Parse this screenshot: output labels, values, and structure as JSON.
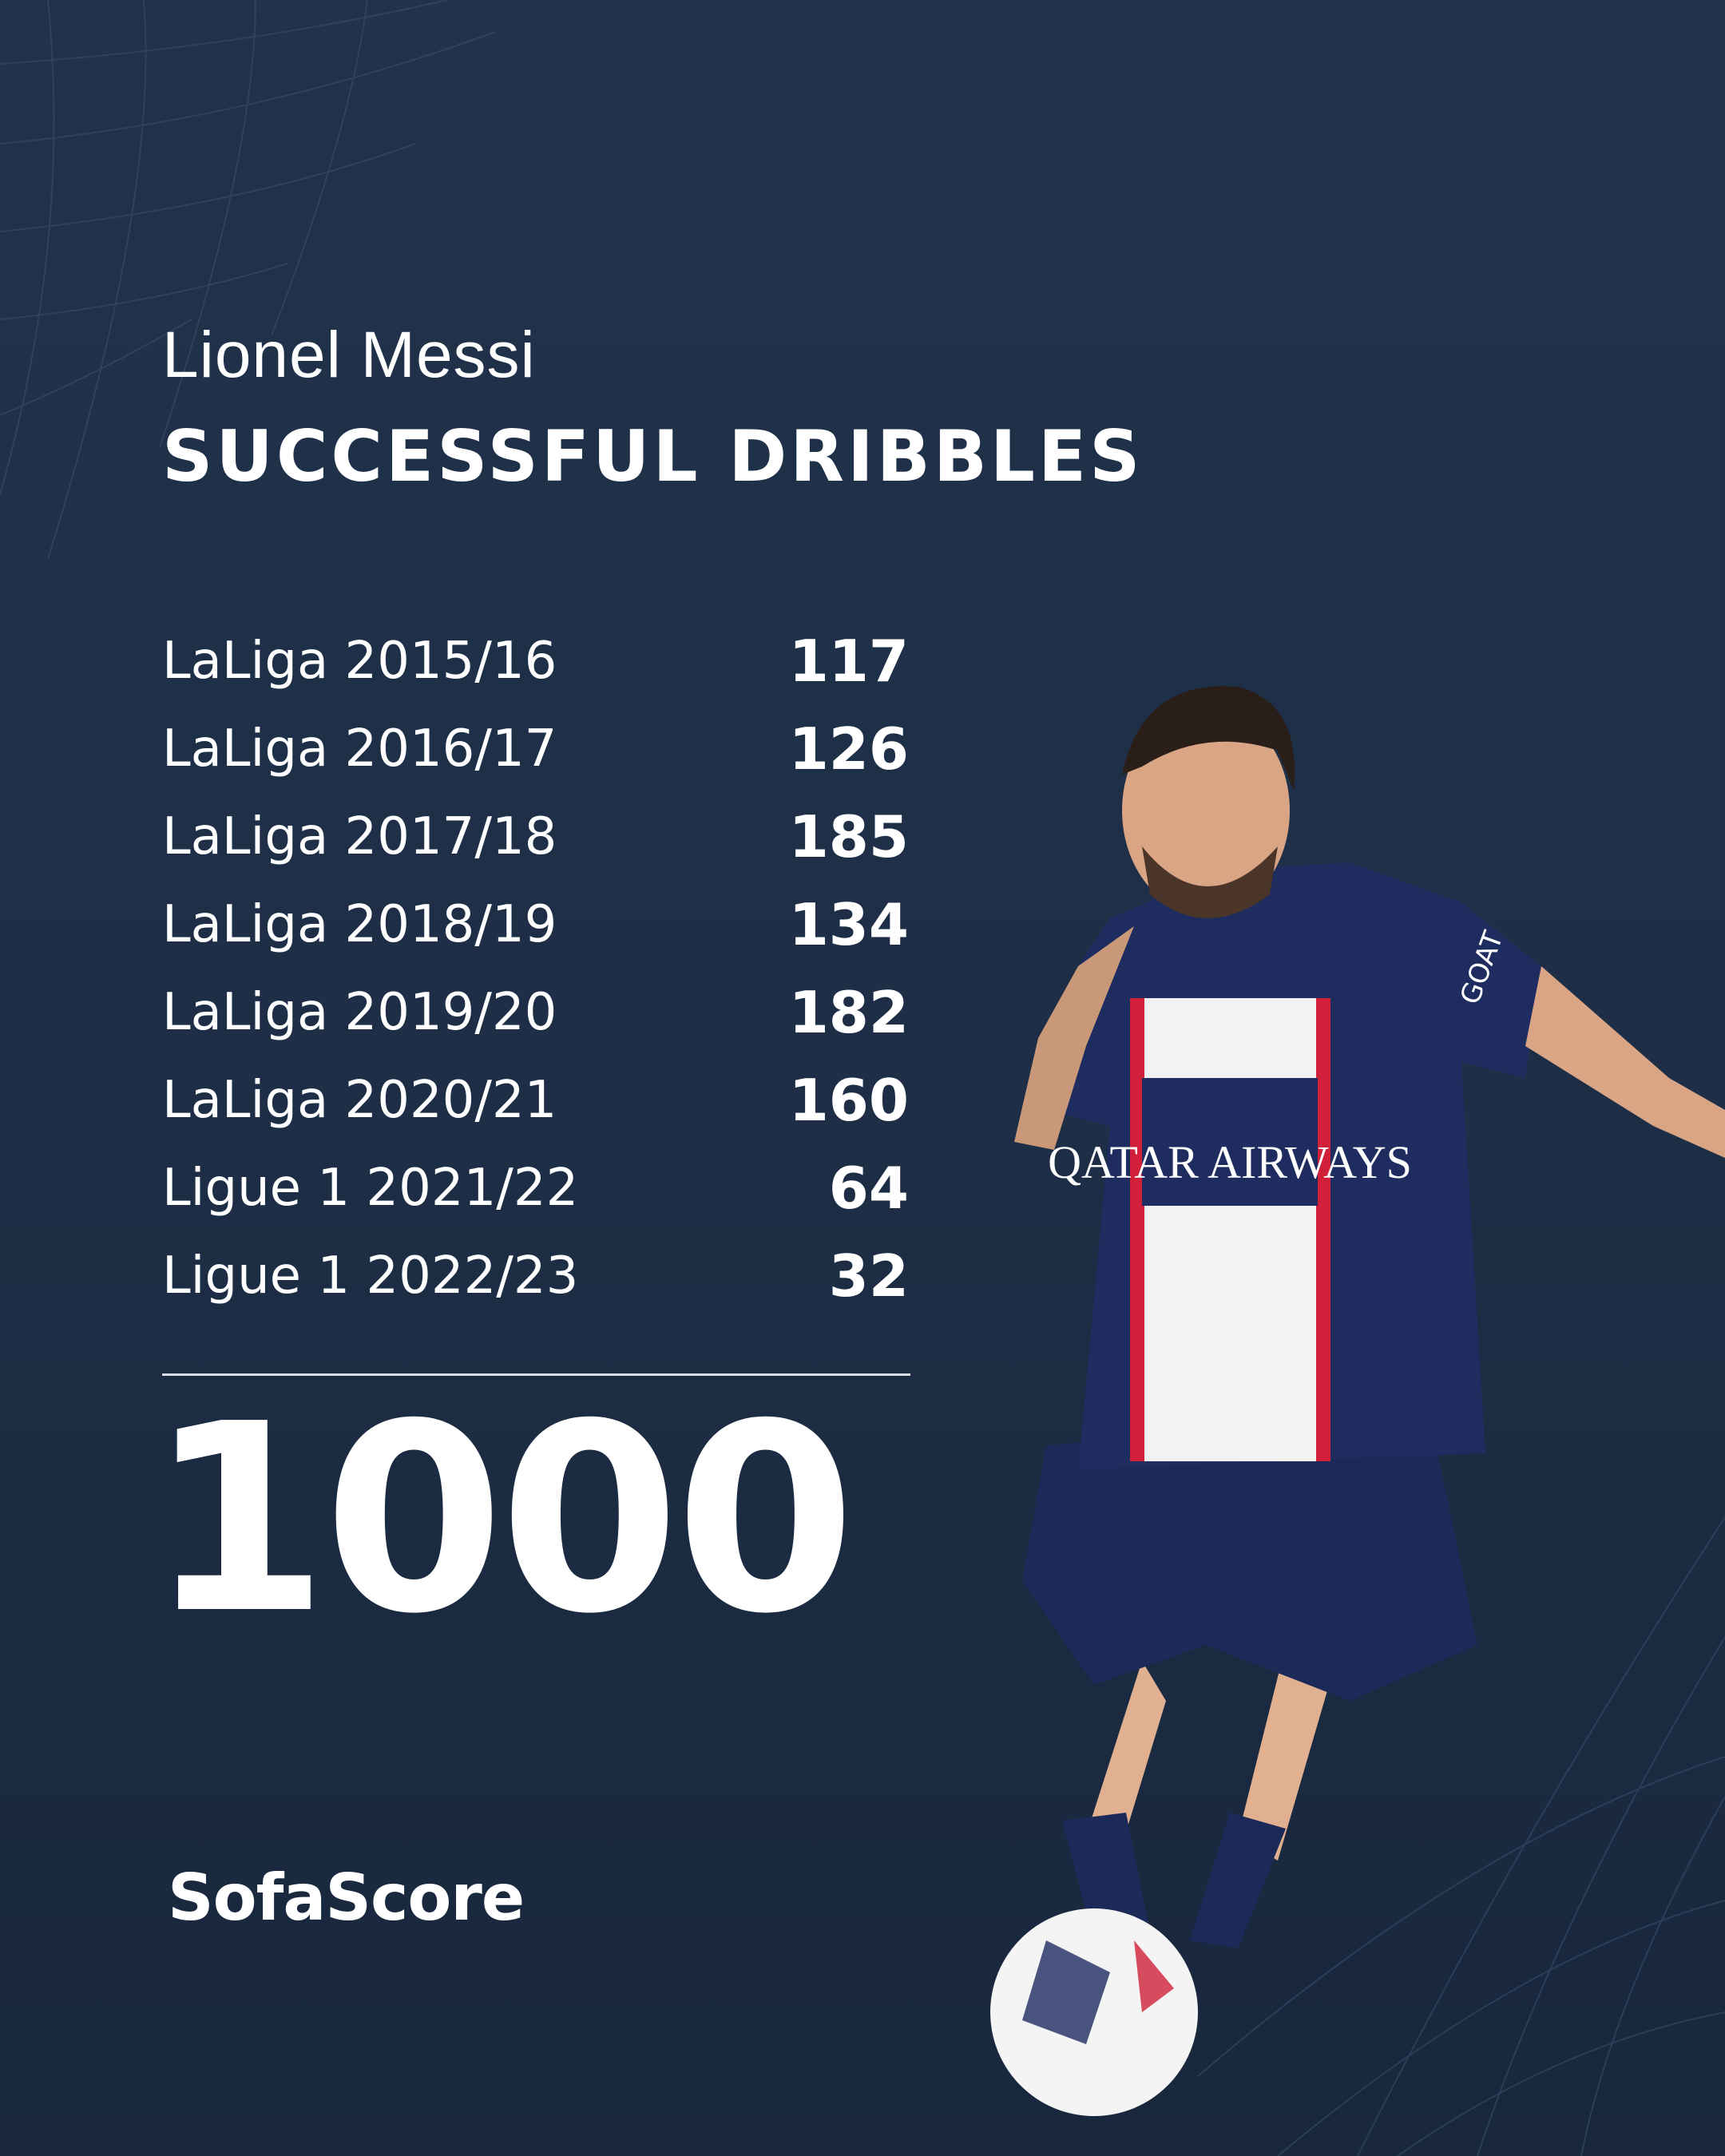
{
  "header": {
    "player_name": "Lionel Messi",
    "stat_title": "SUCCESSFUL DRIBBLES"
  },
  "rows": [
    {
      "label": "LaLiga 2015/16",
      "value": "117"
    },
    {
      "label": "LaLiga 2016/17",
      "value": "126"
    },
    {
      "label": "LaLiga 2017/18",
      "value": "185"
    },
    {
      "label": "LaLiga 2018/19",
      "value": "134"
    },
    {
      "label": "LaLiga 2019/20",
      "value": "182"
    },
    {
      "label": "LaLiga 2020/21",
      "value": "160"
    },
    {
      "label": "Ligue 1 2021/22",
      "value": "64"
    },
    {
      "label": "Ligue 1 2022/23",
      "value": "32"
    }
  ],
  "total": "1000",
  "brand": "SofaScore",
  "photo": {
    "sponsor": "QATAR AIRWAYS",
    "sleeve": "GOAT"
  },
  "colors": {
    "background": "#1f3048",
    "text": "#ffffff",
    "kit_navy": "#1c2a5a",
    "kit_red": "#d0203a"
  }
}
